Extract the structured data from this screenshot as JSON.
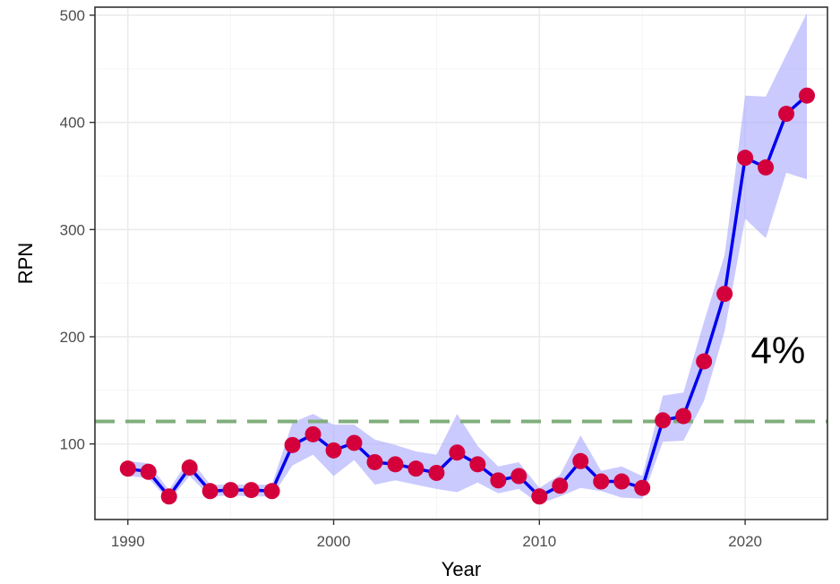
{
  "chart_data": {
    "type": "line",
    "title": "",
    "xlabel": "Year",
    "ylabel": "RPN",
    "xlim": [
      1988.4,
      1992.4
    ],
    "ylim": [
      1990,
      2024
    ],
    "x_ticks": [
      1990,
      2000,
      2010,
      2020
    ],
    "y_ticks": [
      100,
      200,
      300,
      400,
      500
    ],
    "grid": true,
    "legend": "none",
    "series": [
      {
        "x": [
          1990,
          1991,
          1992,
          1993,
          1994,
          1995,
          1996,
          1997,
          1998,
          1999,
          2000,
          2001,
          2002,
          2003,
          2004,
          2005,
          2006,
          2007,
          2008,
          2009,
          2010,
          2011,
          2012,
          2013,
          2014,
          2015,
          2016,
          2017,
          2018,
          2019,
          2020,
          2021,
          2022,
          2023
        ],
        "y": [
          77,
          74,
          51,
          78,
          56,
          57,
          57,
          56,
          99,
          109,
          94,
          101,
          83,
          81,
          77,
          73,
          92,
          81,
          66,
          70,
          51,
          61,
          84,
          65,
          65,
          59,
          122,
          126,
          177,
          240,
          367,
          358,
          408,
          425
        ],
        "lower": [
          70,
          68,
          47,
          70,
          51,
          52,
          51,
          51,
          80,
          90,
          70,
          85,
          62,
          66,
          62,
          58,
          55,
          64,
          54,
          58,
          44,
          51,
          59,
          56,
          50,
          49,
          102,
          103,
          140,
          205,
          310,
          292,
          353,
          347
        ],
        "upper": [
          84,
          82,
          57,
          87,
          62,
          62,
          62,
          62,
          120,
          128,
          118,
          118,
          104,
          99,
          93,
          90,
          128,
          98,
          79,
          83,
          59,
          71,
          108,
          75,
          79,
          70,
          145,
          148,
          214,
          276,
          425,
          424,
          463,
          502
        ]
      }
    ],
    "reference_line": {
      "y": 121
    },
    "annotation": {
      "text": "4%",
      "x": 2021.6,
      "y": 188
    },
    "colors": {
      "line": "#0000ee",
      "band": "#aaaaff",
      "points": "#d4003c",
      "reference": "#7fae7b",
      "grid_major": "#ebebeb",
      "grid_minor": "#f4f4f4",
      "panel_border": "#333333"
    }
  }
}
